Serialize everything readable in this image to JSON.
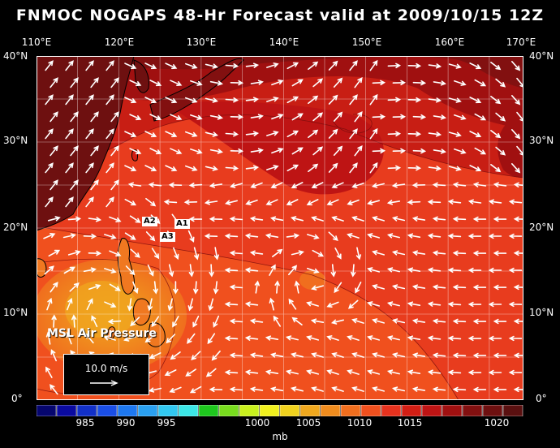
{
  "title": "FNMOC NOGAPS 48-Hr Forecast valid at 2009/10/15 12Z",
  "map_label": "MSL Air Pressure",
  "lon_labels": [
    "110°E",
    "120°E",
    "130°E",
    "140°E",
    "150°E",
    "160°E",
    "170°E"
  ],
  "lat_labels": [
    "40°N",
    "30°N",
    "20°N",
    "10°N",
    "0°"
  ],
  "station_labels": [
    "A2",
    "A1",
    "A3"
  ],
  "scale": {
    "text": "10.0 m/s"
  },
  "colorbar": {
    "unit": "mb",
    "labels": [
      "985",
      "990",
      "995",
      "1000",
      "1005",
      "1010",
      "1015",
      "1020"
    ],
    "colors": [
      "#06066e",
      "#0a0aa0",
      "#1230c8",
      "#1a4ee6",
      "#1e78f0",
      "#2aa0f0",
      "#32c8f0",
      "#3ce6e6",
      "#1ec81e",
      "#78dc1e",
      "#c8f01e",
      "#f0f01e",
      "#f0d21e",
      "#f0a81e",
      "#f08c1e",
      "#f06e1e",
      "#f0501e",
      "#e6321e",
      "#d21e14",
      "#be1414",
      "#a01010",
      "#821010",
      "#6e1010",
      "#5a1010"
    ]
  },
  "colors": {
    "background": "#000000",
    "land_outline": "#000000",
    "wind_arrows": "#ffffff"
  }
}
